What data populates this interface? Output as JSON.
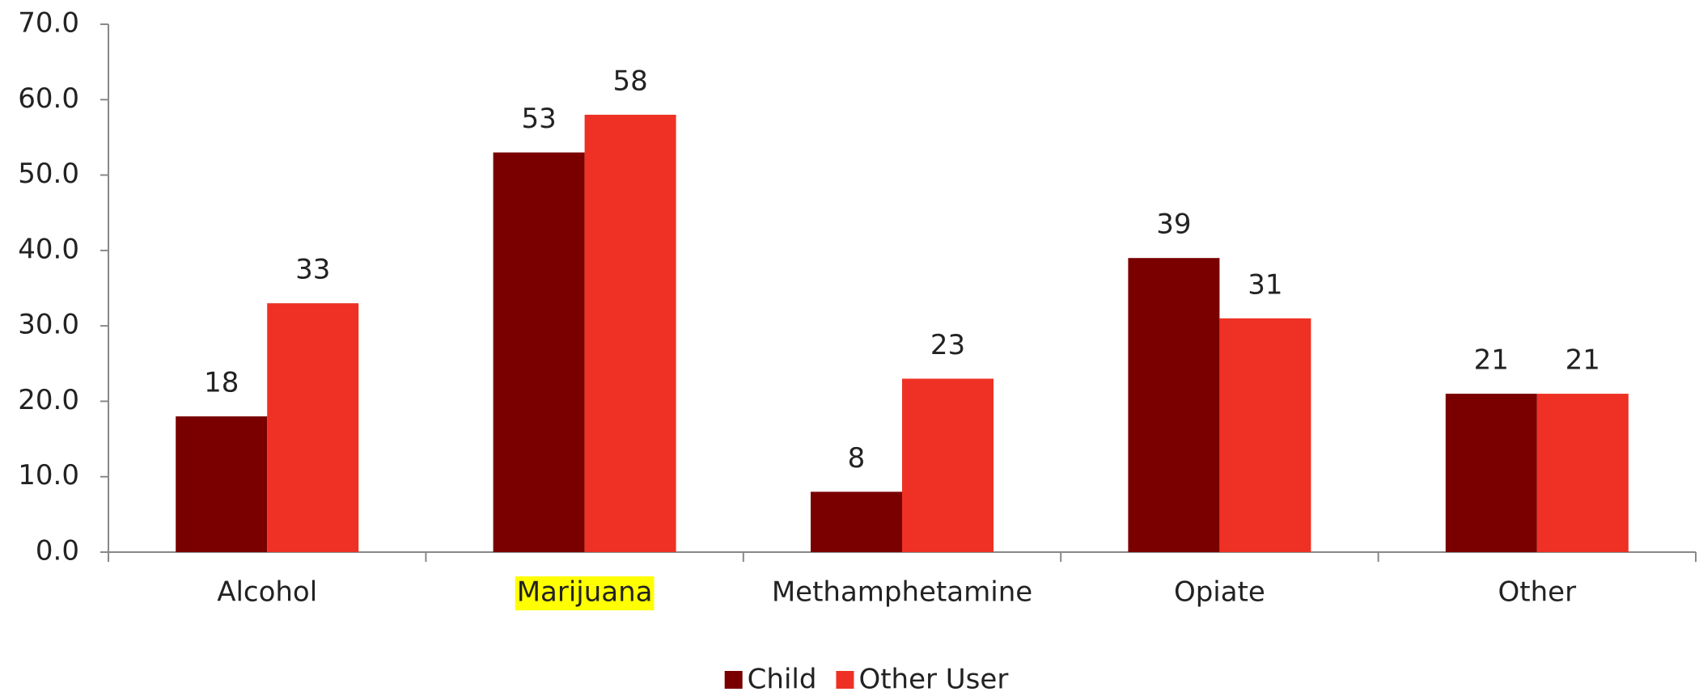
{
  "chart_data": {
    "type": "bar",
    "categories": [
      "Alcohol",
      "Marijuana",
      "Methamphetamine",
      "Opiate",
      "Other"
    ],
    "series": [
      {
        "name": "Child",
        "color": "#7a0000",
        "values": [
          18,
          53,
          8,
          39,
          21
        ]
      },
      {
        "name": "Other User",
        "color": "#ee3124",
        "values": [
          33,
          58,
          23,
          31,
          21
        ]
      }
    ],
    "ylim": [
      0,
      70
    ],
    "yticks": [
      {
        "value": 0,
        "label": "0.0"
      },
      {
        "value": 10,
        "label": "10.0"
      },
      {
        "value": 20,
        "label": "20.0"
      },
      {
        "value": 30,
        "label": "30.0"
      },
      {
        "value": 40,
        "label": "40.0"
      },
      {
        "value": 50,
        "label": "50.0"
      },
      {
        "value": 60,
        "label": "60.0"
      },
      {
        "value": 70,
        "label": "70.0"
      }
    ],
    "grid": false,
    "legend": "bottom",
    "highlight": {
      "index": 1,
      "color": "#ffff00"
    }
  }
}
